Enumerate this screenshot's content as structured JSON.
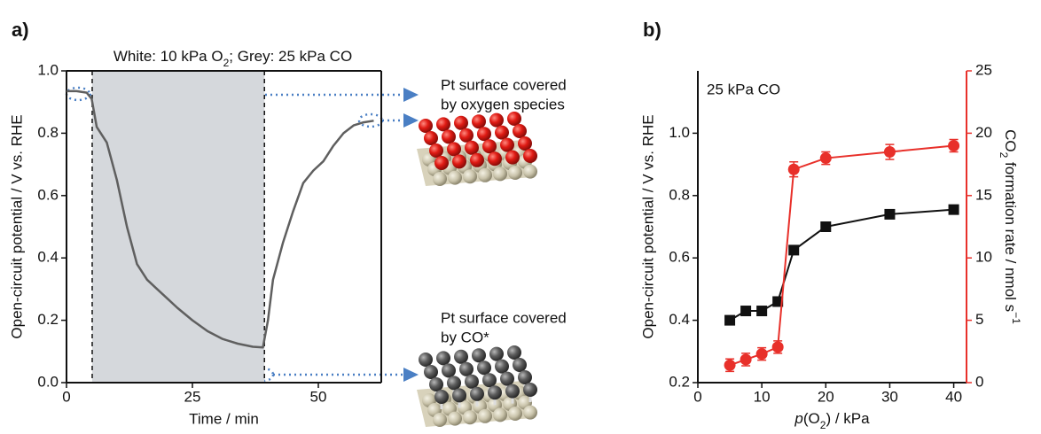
{
  "chart_data": [
    {
      "type": "line",
      "panel_label": "a)",
      "annotation": [
        "White: 10 kPa O",
        "2",
        "; Grey: 25 kPa CO"
      ],
      "shaded_region": [
        5.1,
        39.3
      ],
      "xlabel": "Time / min",
      "ylabel": "Open-circuit potential / V vs. RHE",
      "xlim": [
        0,
        62.5
      ],
      "ylim": [
        0,
        1
      ],
      "xticks": [
        0,
        25,
        50
      ],
      "yticks": [
        {
          "value": 0,
          "label": "0.0"
        },
        0.2,
        0.4,
        0.6,
        0.8,
        {
          "value": 1,
          "label": "1.0"
        }
      ],
      "color": "#5f5f5f",
      "x": [
        0,
        2,
        4,
        5,
        6,
        8,
        10,
        12,
        14,
        16,
        18,
        20,
        22,
        25,
        28,
        31,
        34,
        37,
        39,
        40,
        41,
        43,
        45,
        47,
        49,
        51,
        53,
        55,
        57,
        59,
        61
      ],
      "values": [
        0.935,
        0.935,
        0.93,
        0.91,
        0.82,
        0.77,
        0.65,
        0.5,
        0.38,
        0.33,
        0.3,
        0.27,
        0.24,
        0.2,
        0.165,
        0.14,
        0.125,
        0.115,
        0.113,
        0.2,
        0.33,
        0.45,
        0.55,
        0.64,
        0.68,
        0.71,
        0.76,
        0.8,
        0.825,
        0.835,
        0.84
      ],
      "callouts": [
        [
          "Pt surface covered",
          "by oxygen species"
        ],
        [
          "Pt surface covered",
          "by CO*"
        ]
      ]
    },
    {
      "type": "line",
      "panel_label": "b)",
      "annotation": "25 kPa CO",
      "xlabel": [
        "p",
        "(O",
        "2",
        ") / kPa"
      ],
      "ylabel": "Open-circuit potential / V vs. RHE",
      "y2label": [
        "CO",
        "2",
        " formation rate / nmol s",
        "−1"
      ],
      "xlim": [
        0,
        42
      ],
      "ylim": [
        0.2,
        1.2
      ],
      "y2lim": [
        0,
        25
      ],
      "xticks": [
        0,
        10,
        20,
        30,
        40
      ],
      "yticks": [
        0.2,
        0.4,
        0.6,
        0.8,
        {
          "value": 1,
          "label": "1.0"
        }
      ],
      "y2ticks": [
        0,
        5,
        10,
        15,
        20,
        25
      ],
      "x": [
        5,
        7.5,
        10,
        12.5,
        15,
        20,
        30,
        40
      ],
      "series": [
        {
          "color": "#111111",
          "marker": "square",
          "values": [
            0.4,
            0.43,
            0.43,
            0.46,
            0.625,
            0.7,
            0.74,
            0.755
          ]
        },
        {
          "color": "#e8302a",
          "marker": "circle",
          "axis": "y2",
          "values": [
            1.4,
            1.85,
            2.3,
            2.85,
            17.1,
            18.0,
            18.5,
            19.0
          ],
          "error": [
            0.5,
            0.5,
            0.5,
            0.5,
            0.6,
            0.5,
            0.6,
            0.5
          ]
        }
      ]
    }
  ]
}
